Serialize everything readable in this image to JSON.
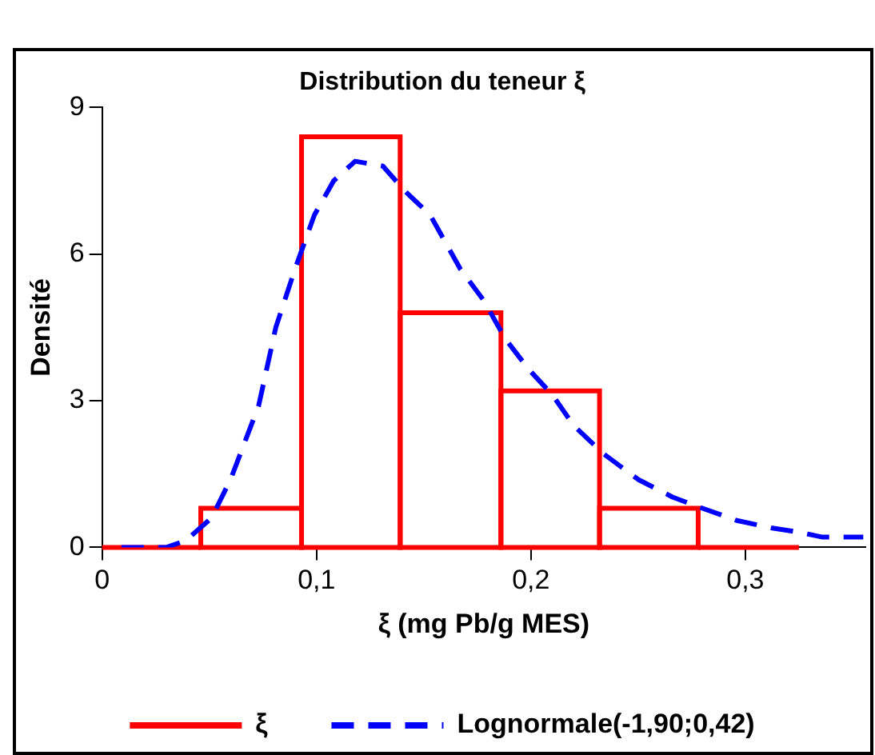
{
  "chart_data": {
    "type": "histogram",
    "title": "Distribution du teneur ξ",
    "xlabel": "ξ (mg Pb/g MES)",
    "ylabel": "Densité",
    "series": [
      {
        "name": "ξ",
        "color": "#ff0000",
        "bins": [
          0,
          0.046,
          0.093,
          0.139,
          0.186,
          0.232,
          0.278,
          0.325
        ],
        "values": [
          0,
          0.8,
          8.4,
          4.8,
          3.2,
          0.8,
          0
        ]
      },
      {
        "name": "Lognormale(-1,90;0,42)",
        "type": "line",
        "color": "#0000ff",
        "line_style": "dashed",
        "x": [
          0.009,
          0.03,
          0.039,
          0.051,
          0.06,
          0.073,
          0.081,
          0.09,
          0.099,
          0.108,
          0.118,
          0.131,
          0.141,
          0.153,
          0.167,
          0.178,
          0.188,
          0.199,
          0.21,
          0.22,
          0.234,
          0.25,
          0.266,
          0.28,
          0.296,
          0.312,
          0.325,
          0.336,
          0.355
        ],
        "values": [
          0,
          0,
          0.14,
          0.6,
          1.4,
          2.9,
          4.5,
          5.7,
          6.8,
          7.5,
          7.9,
          7.8,
          7.3,
          6.8,
          5.7,
          5.05,
          4.27,
          3.64,
          3.12,
          2.49,
          1.91,
          1.39,
          1.03,
          0.8,
          0.55,
          0.4,
          0.31,
          0.21,
          0.21
        ]
      }
    ],
    "xlim": [
      0,
      0.356
    ],
    "xticks": [
      0,
      {
        "value": 0.1,
        "label": "0,1"
      },
      {
        "value": 0.2,
        "label": "0,2"
      },
      {
        "value": 0.3,
        "label": "0,3"
      }
    ],
    "ylim": [
      0,
      9
    ],
    "yticks": [
      0,
      3,
      6,
      9
    ],
    "grid": false,
    "legend": "bottom",
    "marker": "none"
  }
}
